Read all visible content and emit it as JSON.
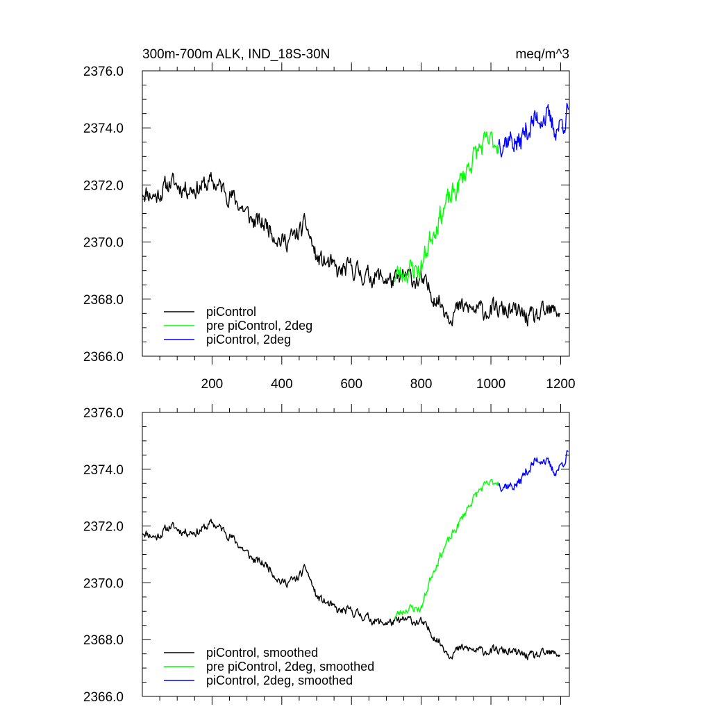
{
  "figure": {
    "title_left": "300m-700m ALK, IND_18S-30N",
    "title_right": "meq/m^3"
  },
  "chart_data": [
    {
      "type": "line",
      "panel": "top",
      "xlim": [
        0,
        1225
      ],
      "ylim": [
        2366.0,
        2376.0
      ],
      "x_ticks": [
        200,
        400,
        600,
        800,
        1000,
        1200
      ],
      "x_tick_labels": [
        "200",
        "400",
        "600",
        "800",
        "1000",
        "1200"
      ],
      "y_ticks": [
        2366.0,
        2368.0,
        2370.0,
        2372.0,
        2374.0,
        2376.0
      ],
      "y_tick_labels": [
        "2366.0",
        "2368.0",
        "2370.0",
        "2372.0",
        "2374.0",
        "2376.0"
      ],
      "legend_position": "bottom-left",
      "series": [
        {
          "name": "piControl",
          "color": "#000000",
          "noise": 0.28,
          "seed": 11,
          "anchors": [
            [
              1,
              2371.8
            ],
            [
              40,
              2371.6
            ],
            [
              80,
              2372.1
            ],
            [
              120,
              2371.9
            ],
            [
              160,
              2371.9
            ],
            [
              200,
              2372.1
            ],
            [
              240,
              2371.8
            ],
            [
              280,
              2371.3
            ],
            [
              320,
              2370.7
            ],
            [
              360,
              2370.6
            ],
            [
              400,
              2370.0
            ],
            [
              440,
              2370.2
            ],
            [
              470,
              2370.6
            ],
            [
              500,
              2369.4
            ],
            [
              540,
              2369.2
            ],
            [
              560,
              2368.9
            ],
            [
              600,
              2369.1
            ],
            [
              640,
              2368.8
            ],
            [
              680,
              2368.8
            ],
            [
              720,
              2368.6
            ],
            [
              760,
              2368.8
            ],
            [
              800,
              2368.6
            ],
            [
              840,
              2368.1
            ],
            [
              880,
              2367.5
            ],
            [
              920,
              2367.7
            ],
            [
              960,
              2367.6
            ],
            [
              1000,
              2367.6
            ],
            [
              1040,
              2367.6
            ],
            [
              1080,
              2367.5
            ],
            [
              1120,
              2367.3
            ],
            [
              1160,
              2367.5
            ],
            [
              1200,
              2367.6
            ]
          ]
        },
        {
          "name": "pre piControl, 2deg",
          "color": "#00ff00",
          "noise": 0.35,
          "seed": 23,
          "anchors": [
            [
              722,
              2368.8
            ],
            [
              760,
              2369.0
            ],
            [
              800,
              2369.1
            ],
            [
              830,
              2370.3
            ],
            [
              860,
              2371.1
            ],
            [
              900,
              2371.8
            ],
            [
              940,
              2372.8
            ],
            [
              970,
              2373.3
            ],
            [
              1000,
              2373.5
            ],
            [
              1022,
              2373.5
            ]
          ]
        },
        {
          "name": "piControl, 2deg",
          "color": "#0000ff",
          "noise": 0.38,
          "seed": 37,
          "anchors": [
            [
              1022,
              2373.6
            ],
            [
              1060,
              2373.6
            ],
            [
              1080,
              2373.4
            ],
            [
              1100,
              2373.9
            ],
            [
              1130,
              2374.3
            ],
            [
              1150,
              2374.5
            ],
            [
              1180,
              2374.0
            ],
            [
              1200,
              2374.1
            ],
            [
              1222,
              2374.6
            ]
          ]
        }
      ]
    },
    {
      "type": "line",
      "panel": "bottom",
      "xlim": [
        0,
        1225
      ],
      "ylim": [
        2366.0,
        2376.0
      ],
      "x_ticks": [
        200,
        400,
        600,
        800,
        1000,
        1200
      ],
      "y_ticks": [
        2366.0,
        2368.0,
        2370.0,
        2372.0,
        2374.0,
        2376.0
      ],
      "y_tick_labels": [
        "2366.0",
        "2368.0",
        "2370.0",
        "2372.0",
        "2374.0",
        "2376.0"
      ],
      "legend_position": "bottom-left",
      "series": [
        {
          "name": "piControl, smoothed",
          "color": "#000000",
          "noise": 0.13,
          "seed": 11,
          "anchors": [
            [
              1,
              2371.8
            ],
            [
              40,
              2371.6
            ],
            [
              80,
              2372.0
            ],
            [
              120,
              2371.8
            ],
            [
              160,
              2371.8
            ],
            [
              200,
              2372.1
            ],
            [
              240,
              2371.8
            ],
            [
              280,
              2371.3
            ],
            [
              320,
              2370.8
            ],
            [
              360,
              2370.6
            ],
            [
              400,
              2370.0
            ],
            [
              440,
              2370.1
            ],
            [
              470,
              2370.5
            ],
            [
              500,
              2369.5
            ],
            [
              540,
              2369.2
            ],
            [
              560,
              2369.0
            ],
            [
              600,
              2369.0
            ],
            [
              640,
              2368.8
            ],
            [
              680,
              2368.6
            ],
            [
              720,
              2368.6
            ],
            [
              760,
              2368.7
            ],
            [
              800,
              2368.6
            ],
            [
              840,
              2368.1
            ],
            [
              880,
              2367.5
            ],
            [
              920,
              2367.7
            ],
            [
              960,
              2367.6
            ],
            [
              1000,
              2367.6
            ],
            [
              1040,
              2367.6
            ],
            [
              1080,
              2367.5
            ],
            [
              1120,
              2367.4
            ],
            [
              1160,
              2367.5
            ],
            [
              1200,
              2367.5
            ]
          ]
        },
        {
          "name": "pre piControl, 2deg, smoothed",
          "color": "#00ff00",
          "noise": 0.13,
          "seed": 23,
          "anchors": [
            [
              722,
              2368.8
            ],
            [
              760,
              2369.1
            ],
            [
              800,
              2369.1
            ],
            [
              830,
              2370.3
            ],
            [
              860,
              2371.1
            ],
            [
              900,
              2371.9
            ],
            [
              940,
              2372.8
            ],
            [
              970,
              2373.3
            ],
            [
              1000,
              2373.5
            ],
            [
              1022,
              2373.6
            ]
          ]
        },
        {
          "name": "piControl, 2deg, smoothed",
          "color": "#0000ff",
          "noise": 0.16,
          "seed": 37,
          "anchors": [
            [
              1022,
              2373.5
            ],
            [
              1060,
              2373.4
            ],
            [
              1080,
              2373.5
            ],
            [
              1100,
              2373.9
            ],
            [
              1130,
              2374.3
            ],
            [
              1150,
              2374.4
            ],
            [
              1180,
              2373.9
            ],
            [
              1200,
              2374.1
            ],
            [
              1222,
              2374.6
            ]
          ]
        }
      ]
    }
  ]
}
